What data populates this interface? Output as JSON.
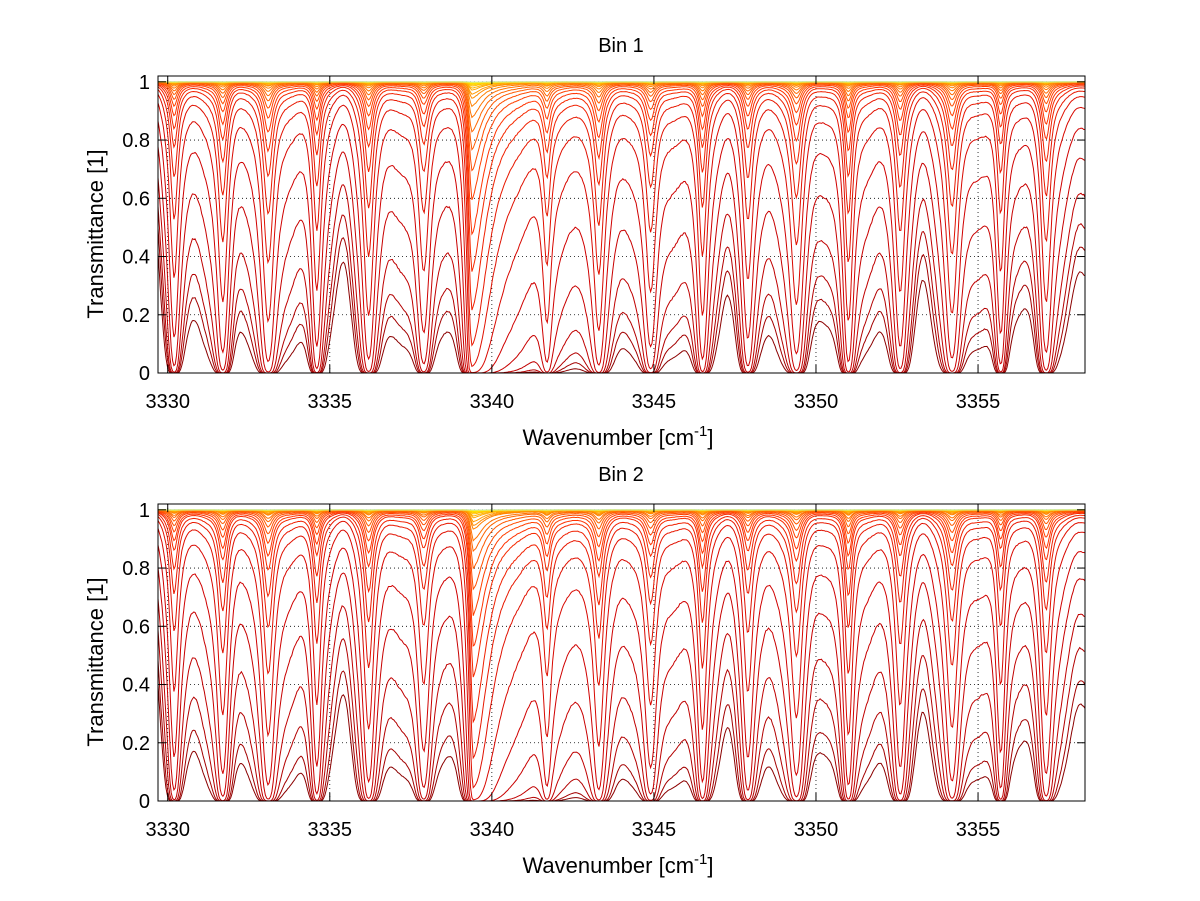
{
  "figure": {
    "background": "#ffffff"
  },
  "chart_data": [
    {
      "type": "line",
      "title": "Bin 1",
      "xlabel_main": "Wavenumber [cm",
      "xlabel_sup": "-1",
      "xlabel_tail": "]",
      "ylabel": "Transmittance [1]",
      "xlim": [
        3329.7,
        3358.3
      ],
      "ylim": [
        0,
        1.02
      ],
      "xticks": [
        3330,
        3335,
        3340,
        3345,
        3350,
        3355
      ],
      "xtick_labels": [
        "3330",
        "3335",
        "3340",
        "3345",
        "3350",
        "3355"
      ],
      "yticks": [
        0,
        0.2,
        0.4,
        0.6,
        0.8,
        1
      ],
      "ytick_labels": [
        "0",
        "0.2",
        "0.4",
        "0.6",
        "0.8",
        "1"
      ],
      "grid": true,
      "grid_style": "dotted",
      "colormap": "autumn",
      "curve_count": 30,
      "baseline_levels": [
        0.005,
        0.015,
        0.035,
        0.09,
        0.22,
        0.42,
        0.63,
        0.77,
        0.85,
        0.9,
        0.93,
        0.95,
        0.965,
        0.975,
        0.982,
        0.987,
        0.991,
        0.994,
        0.996,
        0.997,
        0.998,
        0.9985,
        0.999,
        0.9993,
        0.9995,
        0.9997,
        0.9998,
        0.9999,
        1.0,
        1.0
      ],
      "strong_line": {
        "center": 3339.35,
        "depth": 0.75
      },
      "absorption_lines": [
        3330.2,
        3331.7,
        3333.1,
        3334.6,
        3336.2,
        3337.9,
        3341.7,
        3343.3,
        3344.9,
        3346.5,
        3347.9,
        3349.4,
        3351.0,
        3352.6,
        3354.2,
        3355.7,
        3357.1
      ],
      "line_colors": [
        "#8b0000",
        "#a30000",
        "#b30000",
        "#c00000",
        "#c80000",
        "#d00000",
        "#d80800",
        "#e01000",
        "#e81800",
        "#f02000",
        "#f52a00",
        "#ff3300",
        "#ff4000",
        "#ff4d00",
        "#ff5a00",
        "#ff6600",
        "#ff7300",
        "#ff8000",
        "#ff8c00",
        "#ff9900",
        "#ffa600",
        "#ffb300",
        "#ffbf00",
        "#ffcc00",
        "#ffd900",
        "#ffe500",
        "#ffee00",
        "#fff200",
        "#e8f060",
        "#c8e8c0"
      ]
    },
    {
      "type": "line",
      "title": "Bin 2",
      "xlabel_main": "Wavenumber [cm",
      "xlabel_sup": "-1",
      "xlabel_tail": "]",
      "ylabel": "Transmittance [1]",
      "xlim": [
        3329.7,
        3358.3
      ],
      "ylim": [
        0,
        1.02
      ],
      "xticks": [
        3330,
        3335,
        3340,
        3345,
        3350,
        3355
      ],
      "xtick_labels": [
        "3330",
        "3335",
        "3340",
        "3345",
        "3350",
        "3355"
      ],
      "yticks": [
        0,
        0.2,
        0.4,
        0.6,
        0.8,
        1
      ],
      "ytick_labels": [
        "0",
        "0.2",
        "0.4",
        "0.6",
        "0.8",
        "1"
      ],
      "grid": true,
      "grid_style": "dotted",
      "colormap": "autumn",
      "curve_count": 30,
      "baseline_levels": [
        0.004,
        0.012,
        0.04,
        0.11,
        0.26,
        0.46,
        0.67,
        0.8,
        0.87,
        0.91,
        0.94,
        0.955,
        0.968,
        0.977,
        0.984,
        0.989,
        0.992,
        0.995,
        0.996,
        0.997,
        0.998,
        0.9985,
        0.999,
        0.9993,
        0.9995,
        0.9997,
        0.9998,
        0.9999,
        1.0,
        1.0
      ],
      "strong_line": {
        "center": 3339.4,
        "depth": 0.7
      },
      "absorption_lines": [
        3330.2,
        3331.7,
        3333.1,
        3334.6,
        3336.2,
        3337.9,
        3341.7,
        3343.3,
        3344.9,
        3346.5,
        3347.9,
        3349.4,
        3351.0,
        3352.6,
        3354.2,
        3355.7,
        3357.1
      ],
      "line_colors": [
        "#8b0000",
        "#a30000",
        "#b30000",
        "#c00000",
        "#c80000",
        "#d00000",
        "#d80800",
        "#e01000",
        "#e81800",
        "#f02000",
        "#f52a00",
        "#ff3300",
        "#ff4000",
        "#ff4d00",
        "#ff5a00",
        "#ff6600",
        "#ff7300",
        "#ff8000",
        "#ff8c00",
        "#ff9900",
        "#ffa600",
        "#ffb300",
        "#ffbf00",
        "#ffcc00",
        "#ffd900",
        "#ffe500",
        "#ffee00",
        "#fff200",
        "#e8f060",
        "#c8e8c0"
      ]
    }
  ]
}
